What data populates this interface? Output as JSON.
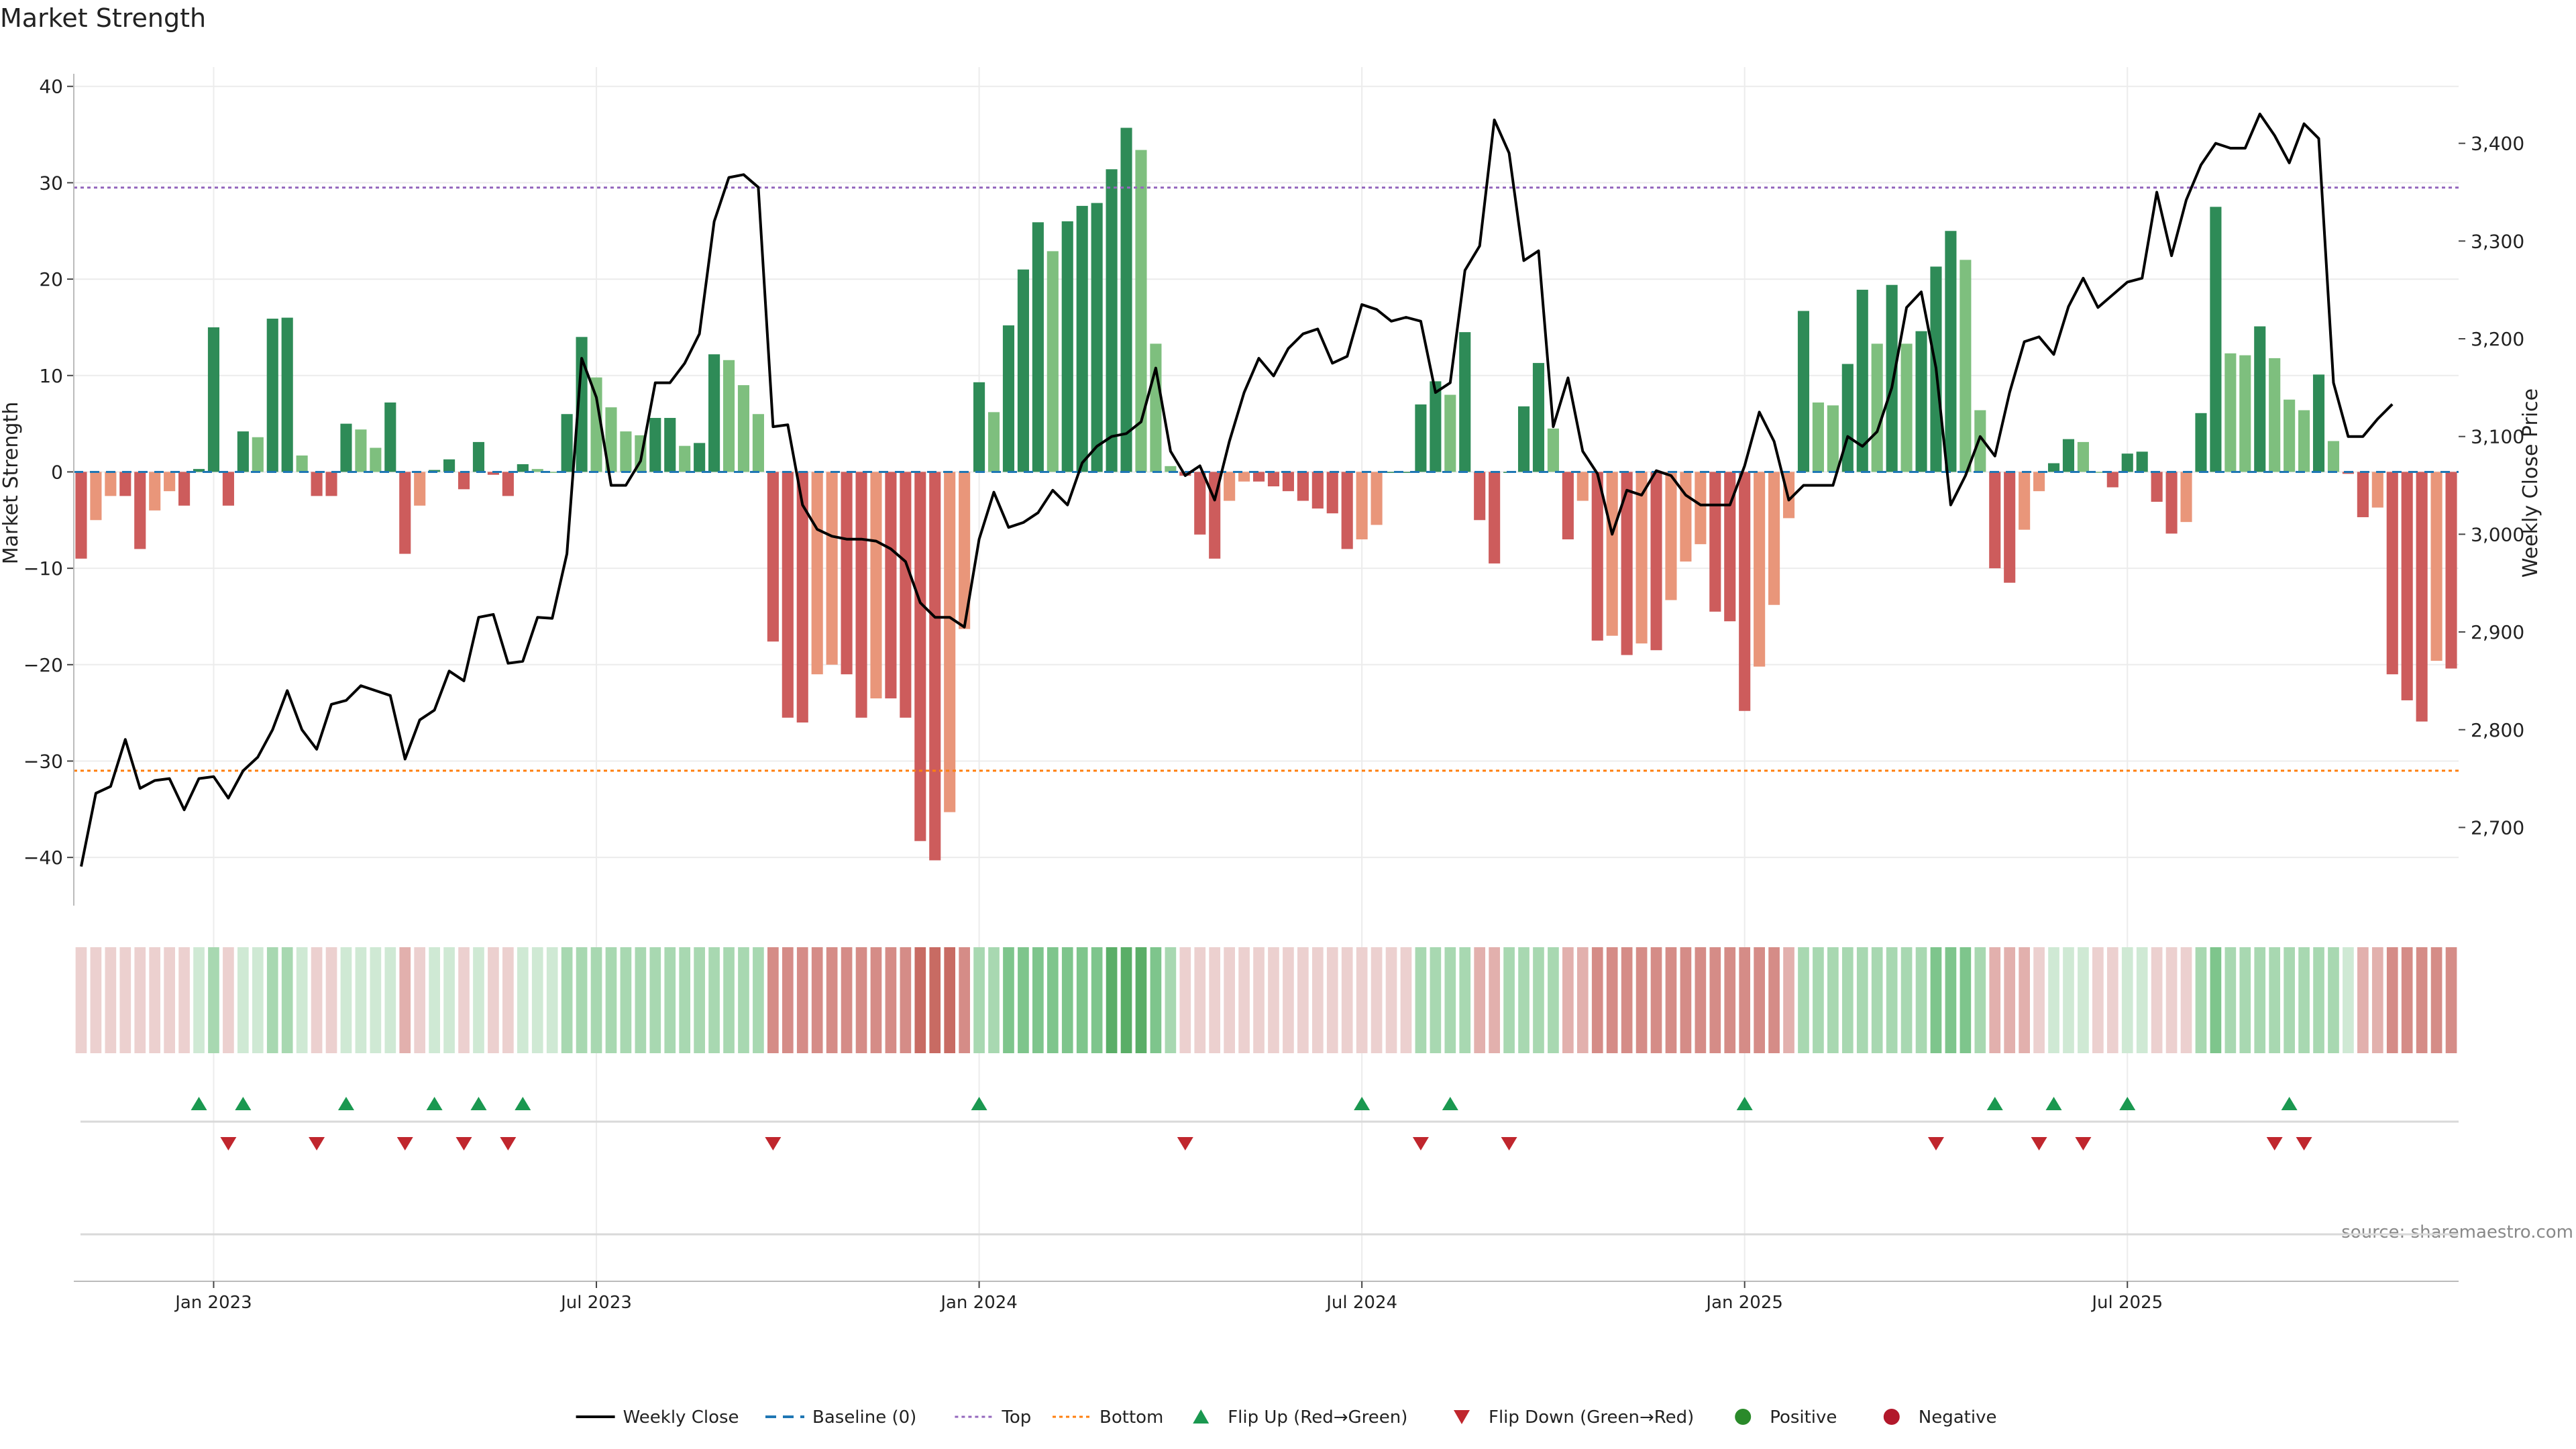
{
  "chart_data": {
    "type": "bar",
    "title": "Market Strength",
    "ylabel": "Market Strength",
    "y2label": "Weekly Close Price",
    "source": "source: sharemaestro.com",
    "ylim": [
      -45,
      42
    ],
    "y2lim": [
      2620,
      3478
    ],
    "yticks": [
      "40",
      "30",
      "20",
      "10",
      "0",
      "−10",
      "−20",
      "−30",
      "−40"
    ],
    "ytick_values": [
      40,
      30,
      20,
      10,
      0,
      -10,
      -20,
      -30,
      -40
    ],
    "y2ticks": [
      "3,400",
      "3,300",
      "3,200",
      "3,100",
      "3,000",
      "2,900",
      "2,800",
      "2,700"
    ],
    "y2tick_values": [
      3400,
      3300,
      3200,
      3100,
      3000,
      2900,
      2800,
      2700
    ],
    "xticks": [
      "Jan 2023",
      "Jul 2023",
      "Jan 2024",
      "Jul 2024",
      "Jan 2025",
      "Jul 2025"
    ],
    "xtick_weeks": [
      9,
      35,
      61,
      87,
      113,
      139
    ],
    "top_level": 29.5,
    "bottom_level": -31,
    "colors": {
      "strong_pos": "#2e8b57",
      "weak_pos": "#7ebf7e",
      "strong_neg": "#cd5c5c",
      "weak_neg": "#e9967a",
      "line": "#000000",
      "baseline": "#1f77b4",
      "top": "#9467bd",
      "bottom": "#ff7f0e",
      "flip_up": "#1a9850",
      "flip_down": "#c0262d",
      "positive": "#2a8a2a",
      "negative": "#b2182b"
    },
    "strength": [
      -9,
      -5,
      -2.5,
      -2.5,
      -8,
      -4,
      -2,
      -3.5,
      0.3,
      15,
      -3.5,
      4.2,
      3.6,
      15.9,
      16,
      1.7,
      -2.5,
      -2.5,
      5,
      4.4,
      2.5,
      7.2,
      -8.5,
      -3.5,
      0.2,
      1.3,
      -1.8,
      3.1,
      -0.3,
      -2.5,
      0.8,
      0.3,
      0,
      6,
      14,
      9.8,
      6.7,
      4.2,
      3.8,
      5.6,
      5.6,
      2.7,
      3,
      12.2,
      11.6,
      9,
      6,
      -17.6,
      -25.5,
      -26,
      -21,
      -20,
      -21,
      -25.5,
      -23.5,
      -23.5,
      -25.5,
      -38.3,
      -40.3,
      -35.3,
      -16.3,
      9.3,
      6.2,
      15.2,
      21,
      25.9,
      22.9,
      26,
      27.6,
      27.9,
      31.4,
      35.7,
      33.4,
      13.3,
      0.6,
      -0.4,
      -6.5,
      -9,
      -3,
      -1,
      -1,
      -1.5,
      -2,
      -3,
      -3.8,
      -4.3,
      -8,
      -7,
      -5.5,
      0,
      0,
      7,
      9.4,
      8,
      14.5,
      -5,
      -9.5,
      0,
      6.8,
      11.3,
      4.5,
      -7,
      -3,
      -17.5,
      -17,
      -19,
      -17.8,
      -18.5,
      -13.3,
      -9.3,
      -7.5,
      -14.5,
      -15.5,
      -24.8,
      -20.2,
      -13.8,
      -4.8,
      16.7,
      7.2,
      6.9,
      11.2,
      18.9,
      13.3,
      19.4,
      13.3,
      14.6,
      21.3,
      25,
      22,
      6.4,
      -10,
      -11.5,
      -6,
      -2,
      0.9,
      3.4,
      3.1,
      0,
      -1.6,
      1.9,
      2.1,
      -3.1,
      -6.4,
      -5.2,
      6.1,
      27.5,
      12.3,
      12.1,
      15.1,
      11.8,
      7.5,
      6.4,
      10.1,
      3.2,
      -0.2,
      -4.7,
      -3.7,
      -21,
      -23.7,
      -25.9,
      -19.6,
      -20.4
    ],
    "close": [
      2660,
      2735,
      2742,
      2790,
      2740,
      2748,
      2750,
      2718,
      2750,
      2752,
      2730,
      2758,
      2772,
      2800,
      2840,
      2800,
      2780,
      2826,
      2830,
      2845,
      2840,
      2835,
      2770,
      2810,
      2820,
      2860,
      2850,
      2915,
      2918,
      2868,
      2870,
      2915,
      2914,
      2980,
      3180,
      3140,
      3050,
      3050,
      3075,
      3155,
      3155,
      3175,
      3205,
      3320,
      3365,
      3368,
      3355,
      3110,
      3112,
      3030,
      3005,
      2998,
      2995,
      2995,
      2993,
      2985,
      2972,
      2930,
      2915,
      2915,
      2905,
      2995,
      3043,
      3007,
      3012,
      3022,
      3045,
      3030,
      3073,
      3090,
      3100,
      3103,
      3115,
      3170,
      3085,
      3060,
      3070,
      3035,
      3095,
      3145,
      3180,
      3162,
      3190,
      3205,
      3210,
      3175,
      3182,
      3235,
      3230,
      3218,
      3222,
      3218,
      3145,
      3155,
      3270,
      3295,
      3424,
      3390,
      3280,
      3290,
      3110,
      3160,
      3085,
      3062,
      3000,
      3045,
      3040,
      3065,
      3060,
      3040,
      3030,
      3030,
      3030,
      3070,
      3125,
      3095,
      3035,
      3050,
      3050,
      3050,
      3100,
      3090,
      3105,
      3150,
      3232,
      3248,
      3170,
      3030,
      3060,
      3100,
      3080,
      3145,
      3197,
      3202,
      3184,
      3233,
      3262,
      3232,
      3245,
      3258,
      3262,
      3350,
      3285,
      3342,
      3378,
      3400,
      3395,
      3395,
      3430,
      3408,
      3380,
      3420,
      3405,
      3155,
      3100,
      3100,
      3118,
      3133
    ],
    "heat": [
      -1,
      -1,
      -1,
      -1,
      -1,
      -1,
      -1,
      -1,
      1,
      2,
      -1,
      1,
      1,
      2,
      2,
      1,
      -1,
      -1,
      1,
      1,
      1,
      1,
      -2,
      -1,
      1,
      1,
      -1,
      1,
      -1,
      -1,
      1,
      1,
      1,
      2,
      2,
      2,
      2,
      2,
      2,
      2,
      2,
      2,
      2,
      2,
      2,
      2,
      2,
      -3,
      -3,
      -3,
      -3,
      -3,
      -3,
      -3,
      -3,
      -3,
      -3,
      -4,
      -4,
      -4,
      -3,
      2,
      2,
      3,
      3,
      3,
      3,
      3,
      3,
      3,
      4,
      4,
      4,
      3,
      2,
      -1,
      -1,
      -1,
      -1,
      -1,
      -1,
      -1,
      -1,
      -1,
      -1,
      -1,
      -1,
      -1,
      -1,
      -1,
      -1,
      2,
      2,
      2,
      2,
      -2,
      -2,
      2,
      2,
      2,
      2,
      -2,
      -2,
      -3,
      -3,
      -3,
      -3,
      -3,
      -3,
      -3,
      -3,
      -3,
      -3,
      -3,
      -3,
      -3,
      -2,
      2,
      2,
      2,
      2,
      2,
      2,
      2,
      2,
      2,
      3,
      3,
      3,
      2,
      -2,
      -2,
      -2,
      -1,
      1,
      1,
      1,
      -1,
      -1,
      1,
      1,
      -1,
      -1,
      -1,
      2,
      3,
      2,
      2,
      2,
      2,
      2,
      2,
      2,
      2,
      1,
      -2,
      -2,
      -3,
      -3,
      -3,
      -3,
      -3
    ],
    "flip_up_weeks": [
      8,
      11,
      18,
      24,
      27,
      30,
      61,
      87,
      93,
      113,
      130,
      134,
      139,
      150
    ],
    "flip_down_weeks": [
      10,
      16,
      22,
      26,
      29,
      47,
      75,
      91,
      97,
      126,
      133,
      136,
      149,
      151
    ],
    "legend": [
      {
        "key": "line",
        "label": "Weekly Close"
      },
      {
        "key": "baseline",
        "label": "Baseline (0)"
      },
      {
        "key": "top",
        "label": "Top"
      },
      {
        "key": "bottom",
        "label": "Bottom"
      },
      {
        "key": "flip_up",
        "label": "Flip Up (Red→Green)"
      },
      {
        "key": "flip_down",
        "label": "Flip Down (Green→Red)"
      },
      {
        "key": "positive",
        "label": "Positive"
      },
      {
        "key": "negative",
        "label": "Negative"
      }
    ]
  }
}
